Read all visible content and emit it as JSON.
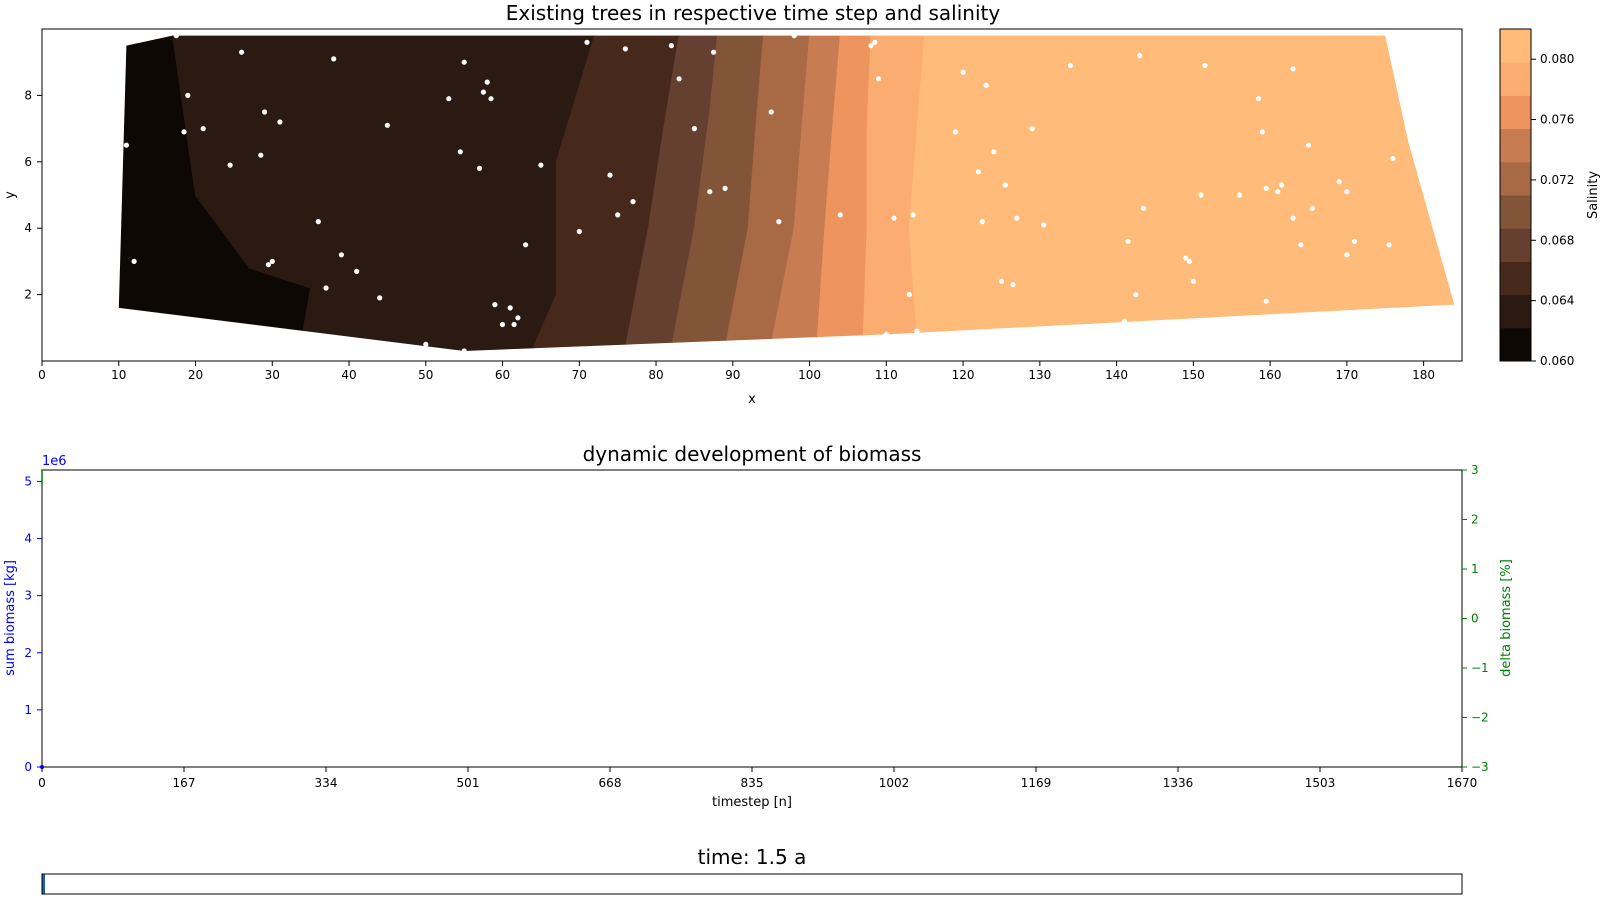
{
  "colors": {
    "salinity_levels": [
      "#0e0805",
      "#2a1a11",
      "#47291b",
      "#654030",
      "#835538",
      "#a86945",
      "#c77c52",
      "#ee955f",
      "#fbac71",
      "#febb79"
    ],
    "trees": "#ffffff",
    "biomass_axis": "#0000ff",
    "delta_axis": "#008000",
    "progress_fill": "#1f5fa8"
  },
  "chart_data": [
    {
      "type": "heatmap",
      "title": "Existing trees in respective time step and salinity",
      "xlabel": "x",
      "ylabel": "y",
      "xlim": [
        0,
        185
      ],
      "ylim": [
        0,
        10
      ],
      "xticks": [
        "0",
        "10",
        "20",
        "30",
        "40",
        "50",
        "60",
        "70",
        "80",
        "90",
        "100",
        "110",
        "120",
        "130",
        "140",
        "150",
        "160",
        "170",
        "180"
      ],
      "yticks": [
        "2",
        "4",
        "6",
        "8"
      ],
      "colorbar": {
        "label": "Salinity",
        "range": [
          0.06,
          0.082
        ],
        "ticks": [
          "0.060",
          "0.064",
          "0.068",
          "0.072",
          "0.076",
          "0.080"
        ]
      },
      "domain_outline": [
        [
          10,
          1.6
        ],
        [
          11,
          9.5
        ],
        [
          17,
          9.8
        ],
        [
          98,
          9.8
        ],
        [
          175,
          9.8
        ],
        [
          178,
          6.6
        ],
        [
          184,
          1.7
        ],
        [
          110,
          0.8
        ],
        [
          55,
          0.3
        ],
        [
          10,
          1.6
        ]
      ],
      "level_boundaries": [
        [
          [
            17,
            9.8
          ],
          [
            20,
            5
          ],
          [
            27,
            2.8
          ],
          [
            35,
            2.2
          ],
          [
            34,
            0.9
          ]
        ],
        [
          [
            72,
            9.8
          ],
          [
            67,
            6
          ],
          [
            67,
            2
          ],
          [
            64,
            0.4
          ]
        ],
        [
          [
            83,
            9.8
          ],
          [
            81,
            7
          ],
          [
            79,
            4
          ],
          [
            76,
            0.4
          ]
        ],
        [
          [
            88,
            9.8
          ],
          [
            87,
            7.5
          ],
          [
            85,
            4
          ],
          [
            82,
            0.4
          ]
        ],
        [
          [
            94,
            9.8
          ],
          [
            93,
            7
          ],
          [
            92,
            4
          ],
          [
            89,
            0.4
          ]
        ],
        [
          [
            100,
            9.8
          ],
          [
            99,
            7
          ],
          [
            98,
            4
          ],
          [
            95,
            0.5
          ]
        ],
        [
          [
            104,
            9.8
          ],
          [
            103,
            7
          ],
          [
            102,
            4
          ],
          [
            101,
            0.6
          ]
        ],
        [
          [
            108,
            9.8
          ],
          [
            107.5,
            7
          ],
          [
            107.5,
            4
          ],
          [
            107,
            0.7
          ]
        ],
        [
          [
            115,
            9.8
          ],
          [
            114,
            7
          ],
          [
            113,
            4
          ],
          [
            114,
            0.7
          ]
        ]
      ],
      "trees": [
        [
          11,
          6.5
        ],
        [
          12,
          3
        ],
        [
          17.5,
          9.8
        ],
        [
          18.5,
          6.9
        ],
        [
          19,
          8
        ],
        [
          21,
          7
        ],
        [
          24.5,
          5.9
        ],
        [
          26,
          9.3
        ],
        [
          28.5,
          6.2
        ],
        [
          29,
          7.5
        ],
        [
          29.5,
          2.9
        ],
        [
          30,
          3
        ],
        [
          31,
          7.2
        ],
        [
          36,
          4.2
        ],
        [
          37,
          2.2
        ],
        [
          38,
          9.1
        ],
        [
          39,
          3.2
        ],
        [
          41,
          2.7
        ],
        [
          44,
          1.9
        ],
        [
          45,
          7.1
        ],
        [
          50,
          0.5
        ],
        [
          53,
          7.9
        ],
        [
          54.5,
          6.3
        ],
        [
          55,
          9
        ],
        [
          55,
          0.3
        ],
        [
          57,
          5.8
        ],
        [
          57.5,
          8.1
        ],
        [
          58,
          8.4
        ],
        [
          58.5,
          7.9
        ],
        [
          59,
          1.7
        ],
        [
          60,
          1.1
        ],
        [
          61,
          1.6
        ],
        [
          61.5,
          1.1
        ],
        [
          62,
          1.3
        ],
        [
          63,
          3.5
        ],
        [
          65,
          5.9
        ],
        [
          70,
          3.9
        ],
        [
          71,
          9.6
        ],
        [
          74,
          5.6
        ],
        [
          75,
          4.4
        ],
        [
          76,
          9.4
        ],
        [
          77,
          4.8
        ],
        [
          82,
          9.5
        ],
        [
          83,
          8.5
        ],
        [
          85,
          7
        ],
        [
          87,
          5.1
        ],
        [
          87.5,
          9.3
        ],
        [
          89,
          5.2
        ],
        [
          95,
          7.5
        ],
        [
          96,
          4.2
        ],
        [
          98,
          9.8
        ],
        [
          104,
          4.4
        ],
        [
          108,
          9.5
        ],
        [
          108.5,
          9.6
        ],
        [
          109,
          8.5
        ],
        [
          110,
          0.8
        ],
        [
          111,
          4.3
        ],
        [
          113,
          2
        ],
        [
          113.5,
          4.4
        ],
        [
          114,
          0.9
        ],
        [
          119,
          6.9
        ],
        [
          120,
          8.7
        ],
        [
          122,
          5.7
        ],
        [
          122.5,
          4.2
        ],
        [
          123,
          8.3
        ],
        [
          124,
          6.3
        ],
        [
          124,
          0.9
        ],
        [
          125,
          2.4
        ],
        [
          125.5,
          5.3
        ],
        [
          126.5,
          2.3
        ],
        [
          127,
          4.3
        ],
        [
          129,
          7
        ],
        [
          130.5,
          4.1
        ],
        [
          134,
          8.9
        ],
        [
          134.5,
          9.9
        ],
        [
          141,
          1.2
        ],
        [
          141.5,
          3.6
        ],
        [
          142.5,
          2
        ],
        [
          143,
          9.2
        ],
        [
          143.5,
          4.6
        ],
        [
          149,
          3.1
        ],
        [
          149.5,
          3
        ],
        [
          150,
          2.4
        ],
        [
          151,
          5
        ],
        [
          151.5,
          8.9
        ],
        [
          156,
          5
        ],
        [
          156,
          1
        ],
        [
          158.5,
          7.9
        ],
        [
          159,
          6.9
        ],
        [
          159.5,
          5.2
        ],
        [
          159.5,
          1.8
        ],
        [
          161,
          5.1
        ],
        [
          161.5,
          5.3
        ],
        [
          163,
          8.8
        ],
        [
          163,
          4.3
        ],
        [
          164,
          3.5
        ],
        [
          165,
          6.5
        ],
        [
          165.5,
          4.6
        ],
        [
          169,
          5.4
        ],
        [
          170,
          5.1
        ],
        [
          170,
          3.2
        ],
        [
          171,
          3.6
        ],
        [
          175.5,
          3.5
        ],
        [
          176,
          6.1
        ]
      ]
    },
    {
      "type": "line",
      "title": "dynamic development of biomass",
      "xlabel": "timestep [n]",
      "ylabel": "sum biomass [kg]",
      "ylabel_right": "delta biomass [%]",
      "y_exponent": "1e6",
      "xlim": [
        0,
        1670
      ],
      "ylim": [
        0,
        5.2
      ],
      "ylim_right": [
        -3,
        3
      ],
      "xticks": [
        "0",
        "167",
        "334",
        "501",
        "668",
        "835",
        "1002",
        "1169",
        "1336",
        "1503",
        "1670"
      ],
      "yticks": [
        "0",
        "1",
        "2",
        "3",
        "4",
        "5"
      ],
      "yticks_right": [
        "−3",
        "−2",
        "−1",
        "0",
        "1",
        "2",
        "3"
      ],
      "series": [
        {
          "values": [
            [
              0,
              0
            ]
          ]
        },
        {
          "values": [
            [
              0,
              2.7
            ],
            [
              0,
              3
            ]
          ]
        }
      ]
    }
  ],
  "progress": {
    "label": "time: 1.5 a",
    "value": 0.002
  }
}
